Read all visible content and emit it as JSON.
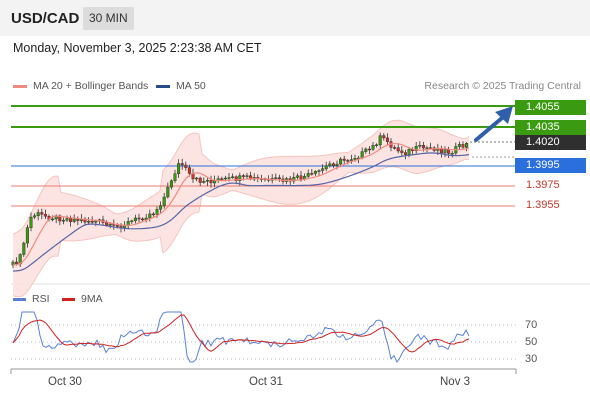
{
  "header": {
    "pair": "USD/CAD",
    "timeframe": "30 MIN"
  },
  "datetime": "Monday, November 3, 2025 2:23:38 AM CET",
  "legend": {
    "ma20_label": "MA 20 + Bollinger Bands",
    "ma50_label": "MA 50",
    "credit": "Research © 2025 Trading Central"
  },
  "levels": {
    "resistance_2": "1.4055",
    "resistance_1": "1.4035",
    "last_price": "1.4020",
    "pivot": "1.3995",
    "support_1": "1.3975",
    "support_2": "1.3955"
  },
  "rsi_legend": {
    "rsi_label": "RSI",
    "ma_label": "9MA"
  },
  "rsi_levels": [
    "70",
    "50",
    "30"
  ],
  "x_axis": [
    "Oct 30",
    "Oct 31",
    "Nov 3"
  ],
  "colors": {
    "green_level": "#3a9b10",
    "pivot_blue": "#2a6fdb",
    "support_red": "#e87b70",
    "ma20": "#f08a80",
    "ma50": "#5565a8",
    "bollinger_fill": "#fbe1de",
    "bull_candle": "#3a9b10",
    "bear_candle": "#d03030",
    "rsi_line": "#5b7fd6",
    "rsi_ma": "#d02020",
    "arrow": "#2f5fa8"
  },
  "chart_data": {
    "type": "candlestick",
    "instrument": "USD/CAD",
    "interval": "30 MIN",
    "y_levels": [
      1.4055,
      1.4035,
      1.402,
      1.3995,
      1.3975,
      1.3955
    ],
    "x_ticks": [
      "Oct 30",
      "Oct 31",
      "Nov 3"
    ],
    "last_price": 1.402,
    "rsi_levels": [
      70,
      50,
      30
    ],
    "series": [
      {
        "name": "MA 20 + Bollinger Bands"
      },
      {
        "name": "MA 50"
      },
      {
        "name": "RSI"
      },
      {
        "name": "9MA"
      }
    ]
  }
}
